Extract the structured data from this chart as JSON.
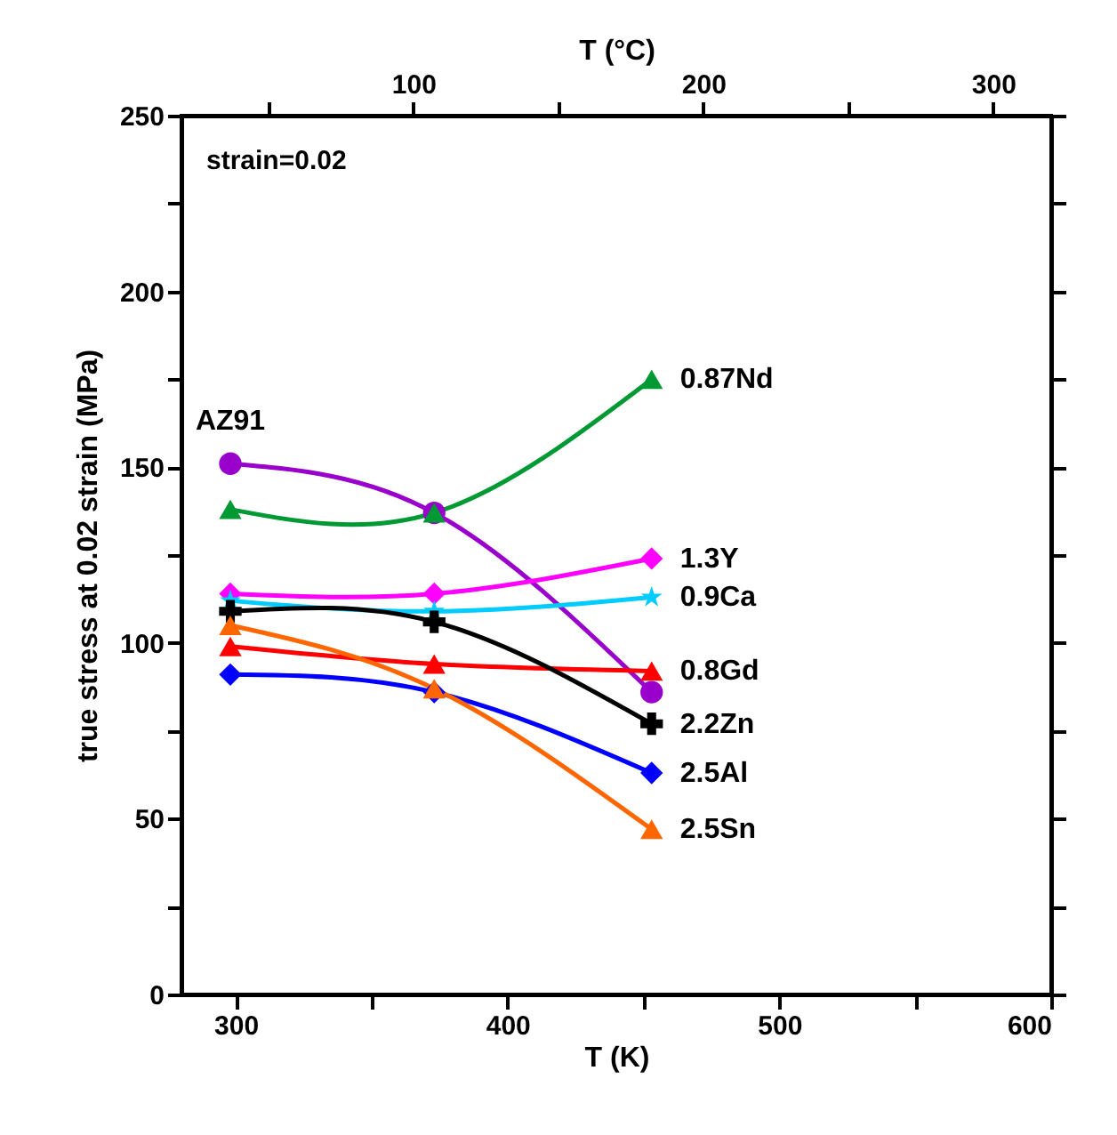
{
  "chart_data": {
    "type": "line",
    "xlabel": "T (K)",
    "ylabel": "true stress at 0.02 strain (MPa)",
    "x2label": "T (°C)",
    "annotations": [
      "strain=0.02"
    ],
    "x": [
      298,
      373,
      453
    ],
    "xlim": [
      280,
      600
    ],
    "xticks": [
      300,
      {
        "value": 350,
        "label": null
      },
      400,
      {
        "value": 450,
        "label": null
      },
      500,
      {
        "value": 550,
        "label": null
      },
      600
    ],
    "x2lim": [
      20,
      320
    ],
    "x2ticks": [
      {
        "value": 50,
        "label": null
      },
      100,
      {
        "value": 150,
        "label": null
      },
      200,
      {
        "value": 250,
        "label": null
      },
      300
    ],
    "ylim": [
      0,
      250
    ],
    "yticks": [
      0,
      {
        "value": 25,
        "label": null
      },
      50,
      {
        "value": 75,
        "label": null
      },
      100,
      {
        "value": 125,
        "label": null
      },
      150,
      {
        "value": 175,
        "label": null
      },
      200,
      {
        "value": 225,
        "label": null
      },
      250
    ],
    "grid": false,
    "legend": false,
    "line_style": "solid",
    "series": [
      {
        "name": "AZ91",
        "color": "#9900cc",
        "marker": "circle",
        "values": [
          151,
          137,
          86
        ]
      },
      {
        "name": "0.87Nd",
        "color": "#009933",
        "marker": "triangle",
        "values": [
          138,
          137,
          175
        ]
      },
      {
        "name": "1.3Y",
        "color": "#ff00ff",
        "marker": "diamond",
        "values": [
          114,
          114,
          124
        ]
      },
      {
        "name": "0.9Ca",
        "color": "#00ccff",
        "marker": "star",
        "values": [
          112,
          109,
          113
        ]
      },
      {
        "name": "0.8Gd",
        "color": "#ff0000",
        "marker": "triangle",
        "values": [
          99,
          94,
          92
        ]
      },
      {
        "name": "2.2Zn",
        "color": "#000000",
        "marker": "cross",
        "values": [
          109,
          106,
          77
        ]
      },
      {
        "name": "2.5Al",
        "color": "#0000ff",
        "marker": "diamond",
        "values": [
          91,
          86,
          63
        ]
      },
      {
        "name": "2.5Sn",
        "color": "#ff6600",
        "marker": "triangle",
        "values": [
          105,
          87,
          47
        ]
      }
    ]
  }
}
